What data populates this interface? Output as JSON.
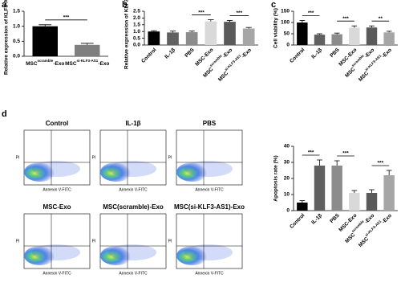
{
  "chart_data": [
    {
      "panel": "a",
      "type": "bar",
      "ylabel": "Relative expression of KLF3-AS1",
      "label_style": "flat",
      "categories": [
        {
          "text": "MSC",
          "sup": "scramble",
          "after": "-Exo"
        },
        {
          "text": "MSC",
          "sup": "si-KLF3-AS1",
          "after": "-Exo"
        }
      ],
      "values": [
        1.0,
        0.38
      ],
      "errors": [
        0.05,
        0.05
      ],
      "colors": [
        "#000000",
        "#7f7f7f"
      ],
      "ylim": [
        0,
        1.5
      ],
      "yticks": [
        {
          "value": 0,
          "label": "0.0"
        },
        {
          "value": 0.5,
          "label": "0.5"
        },
        {
          "value": 1,
          "label": "1.0"
        },
        {
          "value": 1.5,
          "label": "1.5"
        }
      ],
      "significance": [
        {
          "from": 0,
          "to": 1,
          "label": "***"
        }
      ]
    },
    {
      "panel": "b",
      "type": "bar",
      "ylabel": "Relative expression of KLF3-AS1",
      "label_style": "rotated",
      "categories": [
        "Control",
        "IL-1β",
        "PBS",
        "MSC-Exo",
        {
          "text": "MSC",
          "sup": "scramble",
          "after": "-Exo"
        },
        {
          "text": "MSC",
          "sup": "si-KLF3-AS1",
          "after": "-Exo"
        }
      ],
      "values": [
        1.0,
        0.93,
        0.95,
        1.75,
        1.72,
        1.22
      ],
      "errors": [
        0.06,
        0.1,
        0.08,
        0.12,
        0.1,
        0.08
      ],
      "colors": [
        "#000000",
        "#606060",
        "#8c8c8c",
        "#d9d9d9",
        "#5a5a5a",
        "#a6a6a6"
      ],
      "ylim": [
        0,
        2.5
      ],
      "yticks": [
        {
          "value": 0,
          "label": "0.0"
        },
        {
          "value": 0.5,
          "label": "0.5"
        },
        {
          "value": 1,
          "label": "1.0"
        },
        {
          "value": 1.5,
          "label": "1.5"
        },
        {
          "value": 2,
          "label": "2.0"
        },
        {
          "value": 2.5,
          "label": "2.5"
        }
      ],
      "significance": [
        {
          "from": 2,
          "to": 3,
          "label": "***"
        },
        {
          "from": 4,
          "to": 5,
          "label": "***"
        }
      ]
    },
    {
      "panel": "c",
      "type": "bar",
      "ylabel": "Cell viability (%)",
      "label_style": "rotated",
      "categories": [
        "Control",
        "IL-1β",
        "PBS",
        "MSC-Exo",
        {
          "text": "MSC",
          "sup": "scramble",
          "after": "-Exo"
        },
        {
          "text": "MSC",
          "sup": "si-KLF3-AS1",
          "after": "-Exo"
        }
      ],
      "values": [
        100,
        46,
        48,
        77,
        78,
        56
      ],
      "errors": [
        9,
        4,
        5,
        8,
        7,
        5
      ],
      "colors": [
        "#000000",
        "#606060",
        "#8c8c8c",
        "#d9d9d9",
        "#5a5a5a",
        "#a6a6a6"
      ],
      "ylim": [
        0,
        150
      ],
      "yticks": [
        0,
        50,
        100,
        150
      ],
      "significance": [
        {
          "from": 0,
          "to": 1,
          "label": "***"
        },
        {
          "from": 2,
          "to": 3,
          "label": "***"
        },
        {
          "from": 4,
          "to": 5,
          "label": "**"
        }
      ]
    },
    {
      "type": "bar",
      "ylabel": "Apoptosis rate (%)",
      "label_style": "rotated",
      "categories": [
        "Control",
        "IL-1β",
        "PBS",
        "MSC-Exo",
        {
          "text": "MSC",
          "sup": "scramble",
          "after": "-Exo"
        },
        {
          "text": "MSC",
          "sup": "si-KLF3-AS1",
          "after": "-Exo"
        }
      ],
      "values": [
        5,
        28,
        28,
        11,
        11,
        22
      ],
      "errors": [
        1.2,
        3.5,
        3,
        1.5,
        2,
        3
      ],
      "colors": [
        "#000000",
        "#606060",
        "#8c8c8c",
        "#d9d9d9",
        "#5a5a5a",
        "#a6a6a6"
      ],
      "ylim": [
        0,
        40
      ],
      "yticks": [
        0,
        10,
        20,
        30,
        40
      ],
      "significance": [
        {
          "from": 0,
          "to": 1,
          "label": "***"
        },
        {
          "from": 2,
          "to": 3,
          "label": "***"
        },
        {
          "from": 4,
          "to": 5,
          "label": "***"
        }
      ]
    }
  ],
  "flow_cytometry": {
    "panel": "d",
    "x_label": "Annexin V-FITC",
    "y_label": "PI",
    "plots": [
      "Control",
      "IL-1β",
      "PBS",
      "MSC-Exo",
      "MSC(scramble)-Exo",
      "MSC(si-KLF3-AS1)-Exo"
    ]
  }
}
